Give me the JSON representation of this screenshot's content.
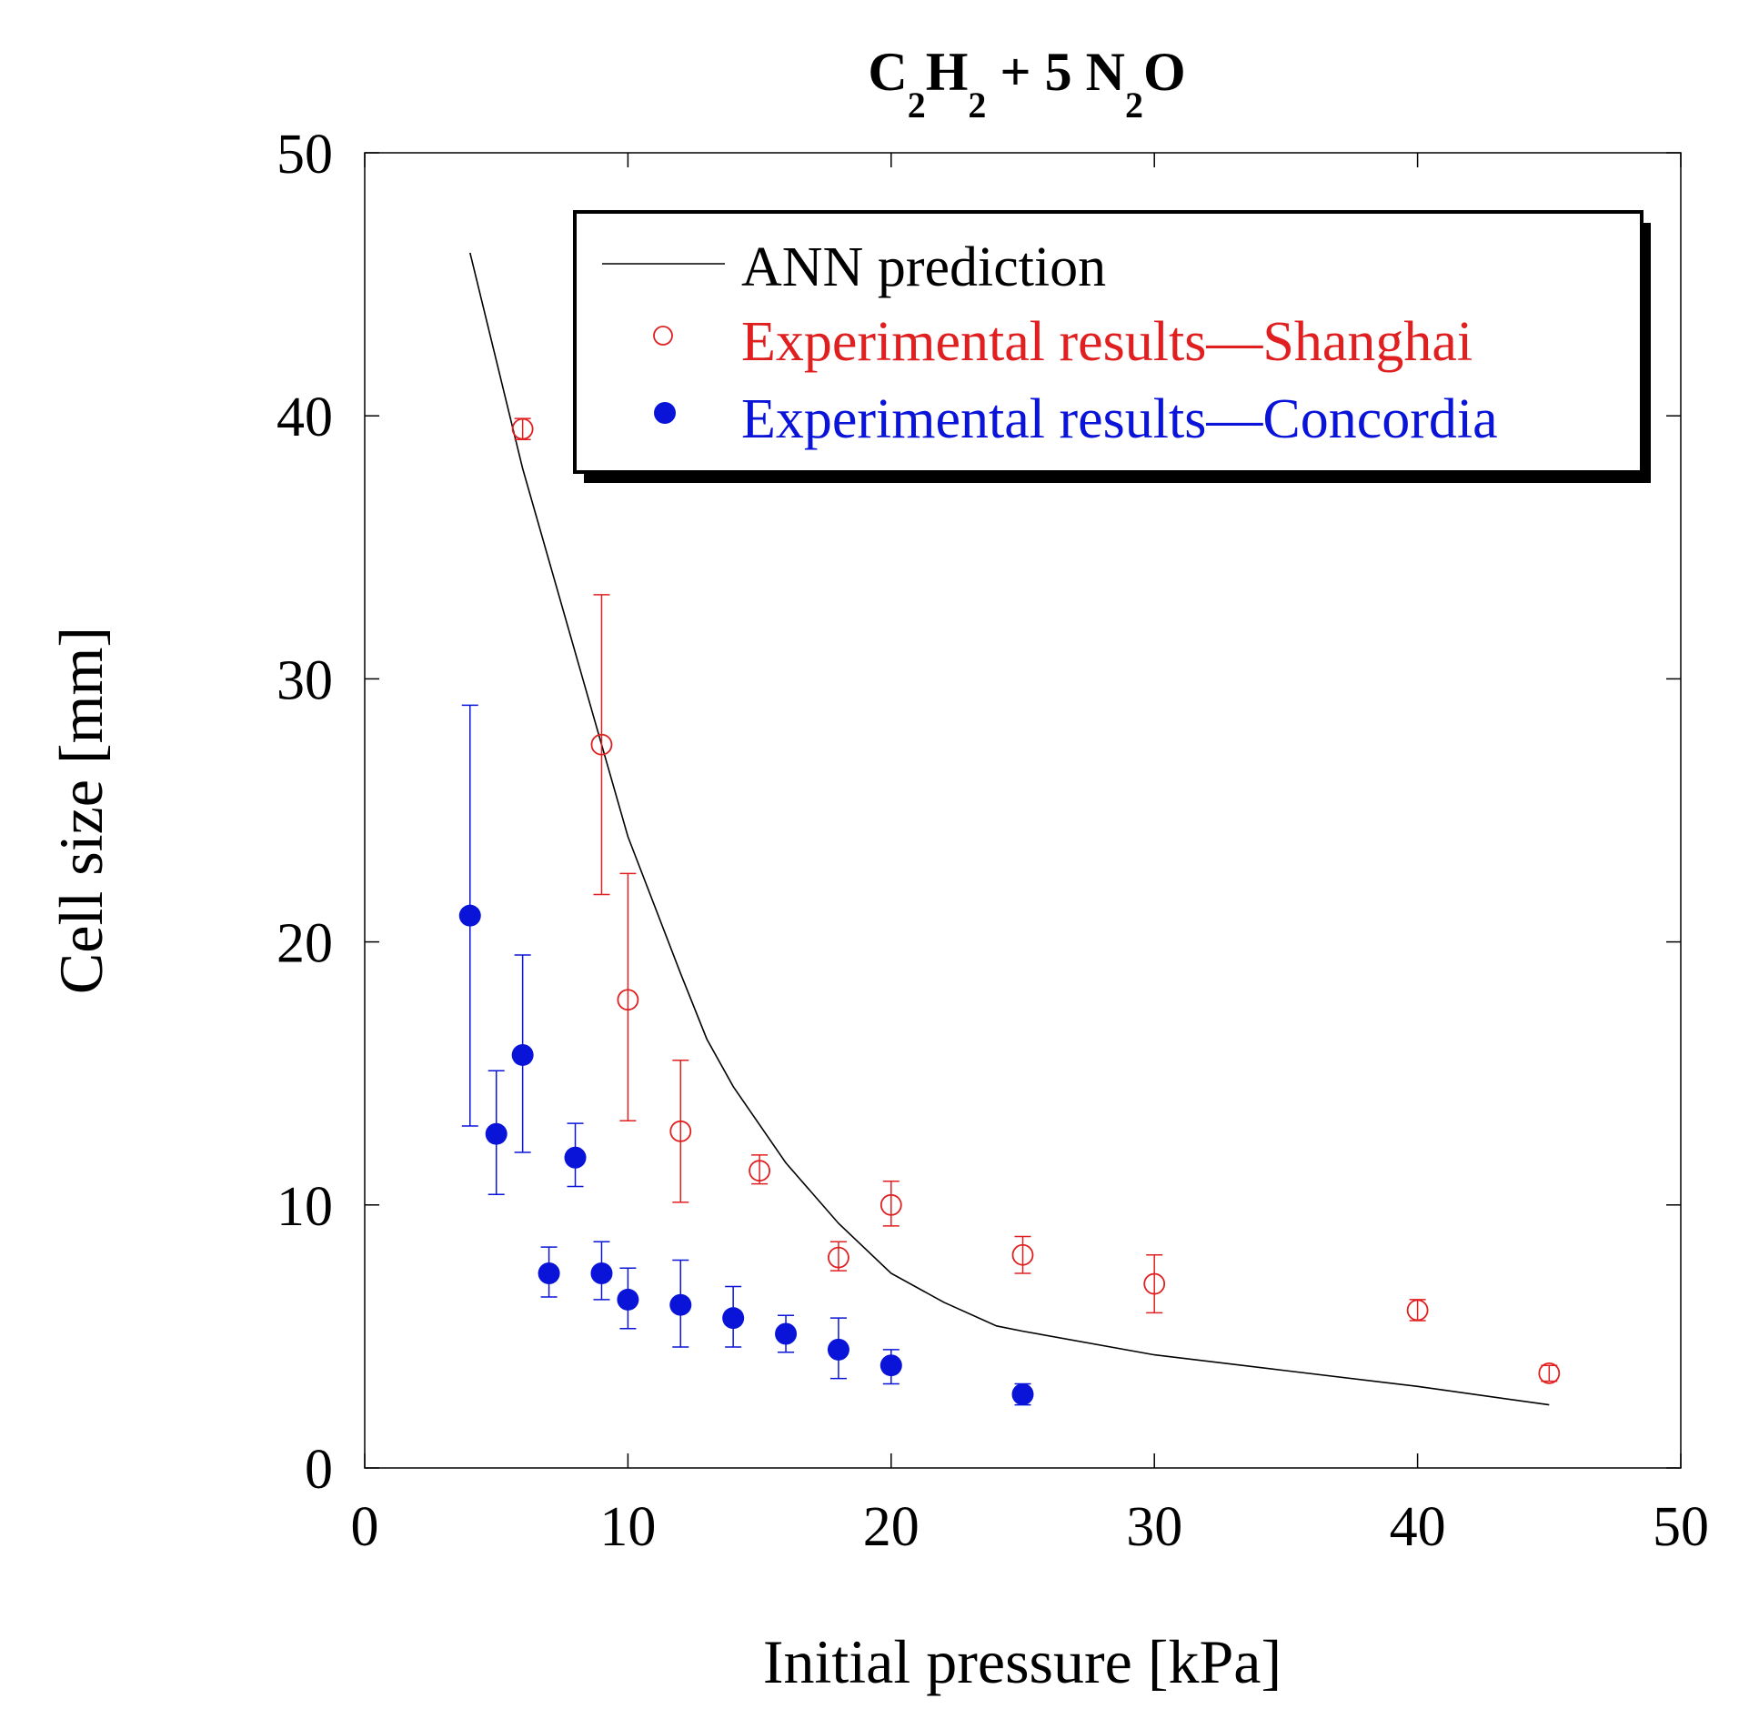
{
  "chart_data": {
    "type": "scatter",
    "title": {
      "base": "C",
      "s1": "2",
      "mid1": "H",
      "s2": "2",
      "mid2": " + 5 N",
      "s3": "2",
      "end": "O"
    },
    "xlabel": "Initial pressure [kPa]",
    "ylabel": "Cell size [mm]",
    "xlim": [
      0,
      50
    ],
    "ylim": [
      0,
      50
    ],
    "x_ticks": [
      0,
      10,
      20,
      30,
      40,
      50
    ],
    "y_ticks": [
      0,
      10,
      20,
      30,
      40,
      50
    ],
    "grid": false,
    "legend_position": "top-right",
    "colors": {
      "ann": "#000000",
      "shanghai": "#e02020",
      "concordia": "#0a14d8"
    },
    "series": [
      {
        "name": "ANN prediction",
        "kind": "line",
        "x": [
          4,
          6,
          8,
          10,
          12,
          13,
          14,
          16,
          18,
          20,
          22,
          24,
          25,
          30,
          35,
          40,
          45
        ],
        "y": [
          46.2,
          38,
          31,
          24,
          18.8,
          16.3,
          14.5,
          11.6,
          9.3,
          7.4,
          6.3,
          5.4,
          5.2,
          4.3,
          3.7,
          3.1,
          2.4
        ]
      },
      {
        "name": "Experimental results—Shanghai",
        "kind": "open-circle",
        "x": [
          6,
          9,
          10,
          12,
          15,
          18,
          20,
          25,
          30,
          40,
          45
        ],
        "y": [
          39.5,
          27.5,
          17.8,
          12.8,
          11.3,
          8,
          10,
          8.1,
          7,
          6,
          3.6
        ],
        "lo": [
          39.1,
          21.8,
          13.2,
          10.1,
          10.8,
          7.5,
          9.2,
          7.4,
          5.9,
          5.6,
          3.3
        ],
        "hi": [
          39.9,
          33.2,
          22.6,
          15.5,
          11.9,
          8.6,
          10.9,
          8.8,
          8.1,
          6.4,
          3.9
        ]
      },
      {
        "name": "Experimental results—Concordia",
        "kind": "filled-circle",
        "x": [
          4,
          5,
          6,
          7,
          8,
          9,
          10,
          12,
          14,
          16,
          18,
          20,
          25
        ],
        "y": [
          21,
          12.7,
          15.7,
          7.4,
          11.8,
          7.4,
          6.4,
          6.2,
          5.7,
          5.1,
          4.5,
          3.9,
          2.8
        ],
        "lo": [
          13,
          10.4,
          12,
          6.5,
          10.7,
          6.4,
          5.3,
          4.6,
          4.6,
          4.4,
          3.4,
          3.2,
          2.4
        ],
        "hi": [
          29,
          15.1,
          19.5,
          8.4,
          13.1,
          8.6,
          7.6,
          7.9,
          6.9,
          5.8,
          5.7,
          4.5,
          3.2
        ]
      }
    ]
  }
}
